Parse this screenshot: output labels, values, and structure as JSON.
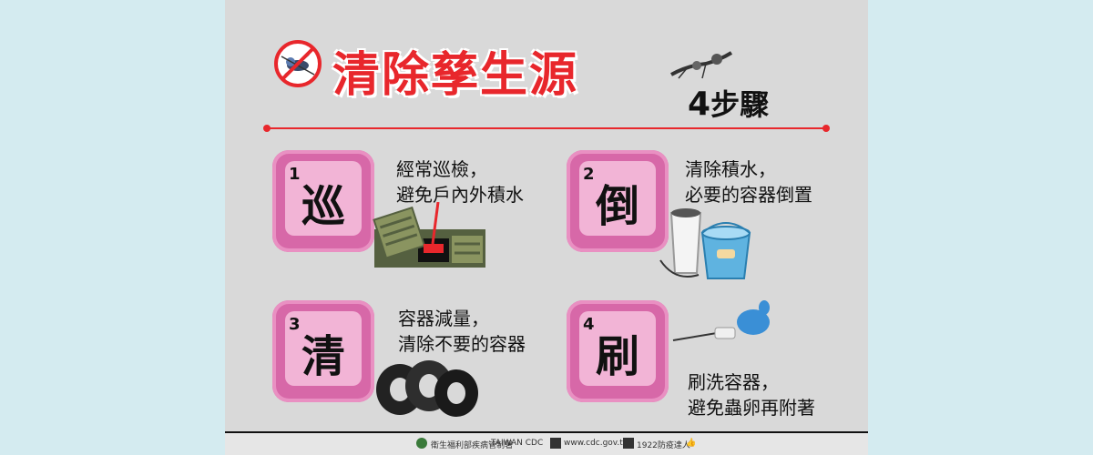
{
  "title": "清除孳生源",
  "subtitle_num": "4",
  "subtitle_text": "步驟",
  "steps": [
    {
      "num": "1",
      "char": "巡",
      "line1": "經常巡檢，",
      "line2": "避免戶內外積水"
    },
    {
      "num": "2",
      "char": "倒",
      "line1": "清除積水，",
      "line2": "必要的容器倒置"
    },
    {
      "num": "3",
      "char": "清",
      "line1": "容器減量，",
      "line2": "清除不要的容器"
    },
    {
      "num": "4",
      "char": "刷",
      "line1": "刷洗容器，",
      "line2": "避免蟲卵再附著"
    }
  ],
  "footer": {
    "org": "衛生福利部疾病管制署",
    "org_en": "TAIWAN CDC",
    "website": "www.cdc.gov.tw",
    "hotline": "1922防疫達人"
  },
  "colors": {
    "accent": "#e8272c",
    "key": "#d768a8",
    "key_face": "#f2b4d6"
  }
}
